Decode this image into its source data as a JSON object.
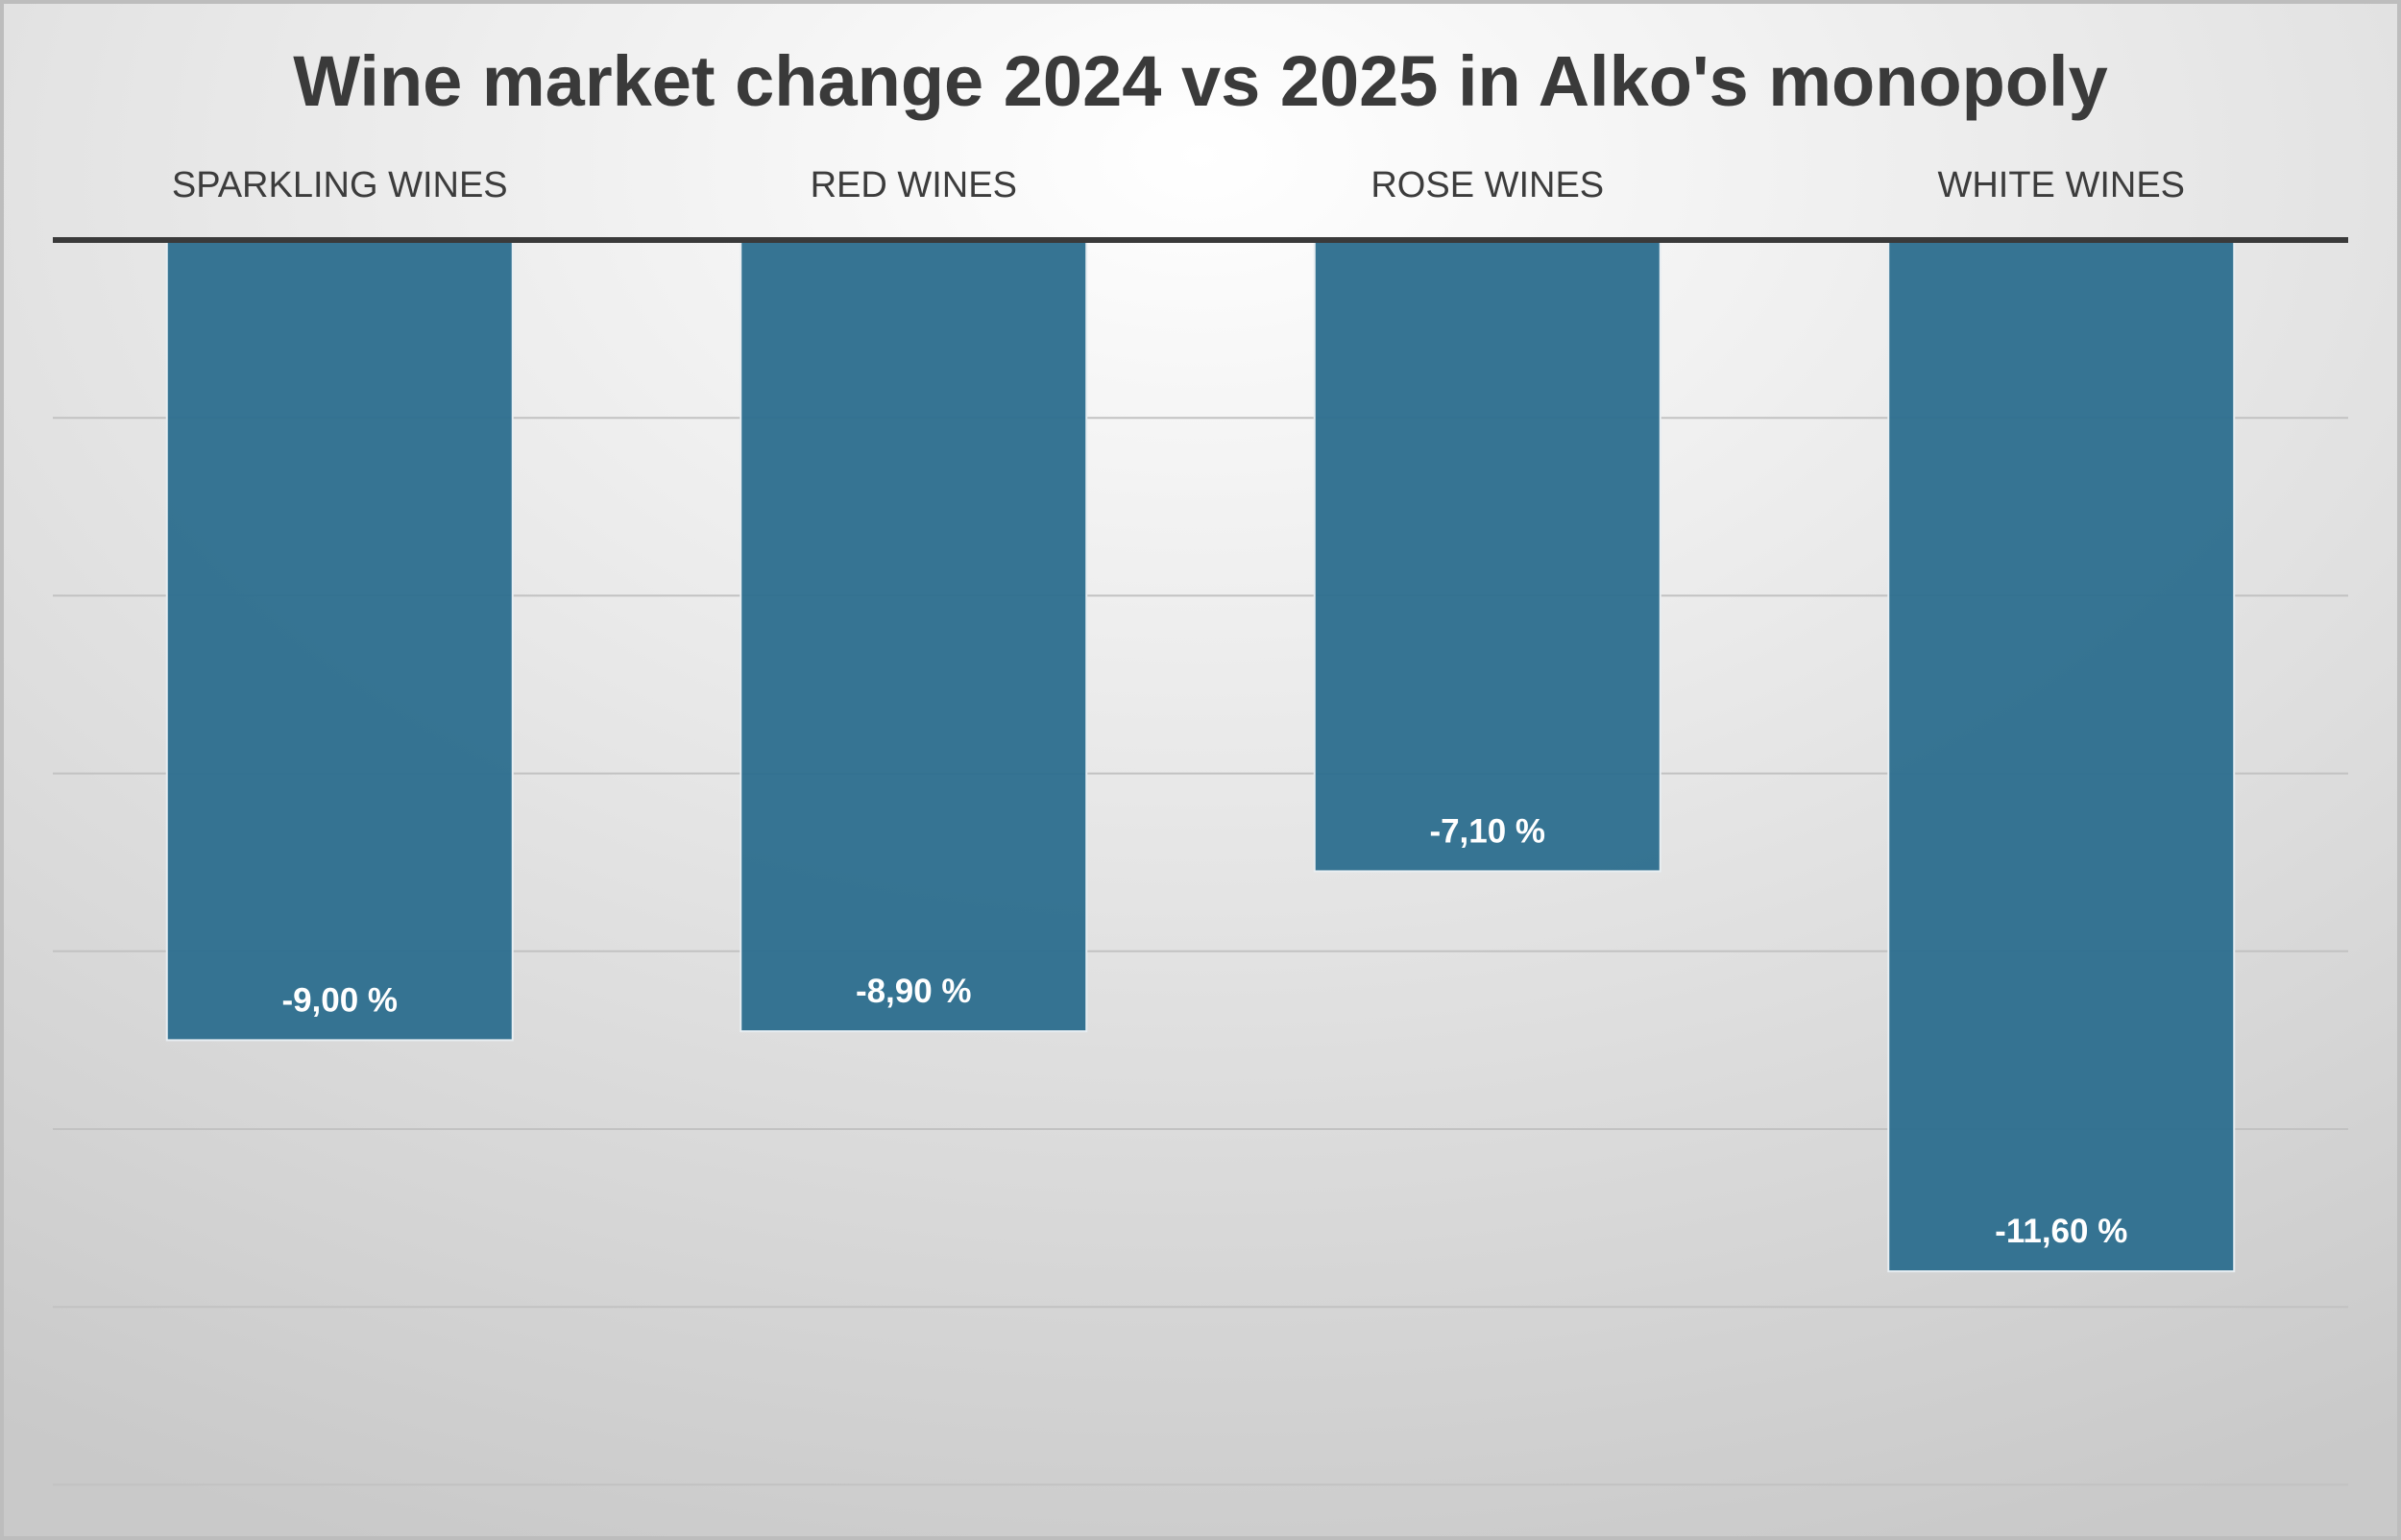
{
  "chart_data": {
    "type": "bar",
    "orientation": "vertical",
    "title": "Wine market change 2024 vs 2025 in Alko's monopoly",
    "categories": [
      "SPARKLING WINES",
      "RED WINES",
      "ROSE WINES",
      "WHITE WINES"
    ],
    "values": [
      -9.0,
      -8.9,
      -7.1,
      -11.6
    ],
    "data_labels": [
      "-9,00 %",
      "-8,90 %",
      "-7,10 %",
      "-11,60 %"
    ],
    "ylim": [
      -14,
      0
    ],
    "y_gridline_step": 2,
    "category_axis_position": "top",
    "value_axis_visible": false,
    "legend": "none",
    "grid": true
  },
  "colors": {
    "bar": "#2f6f8f",
    "bar_edge": "#e8eef2",
    "axis_line": "#3a3a3a",
    "gridline": "#c2c2c2",
    "background_center": "#ffffff",
    "background_edge": "#c9c9c9",
    "frame": "#bdbdbd"
  }
}
